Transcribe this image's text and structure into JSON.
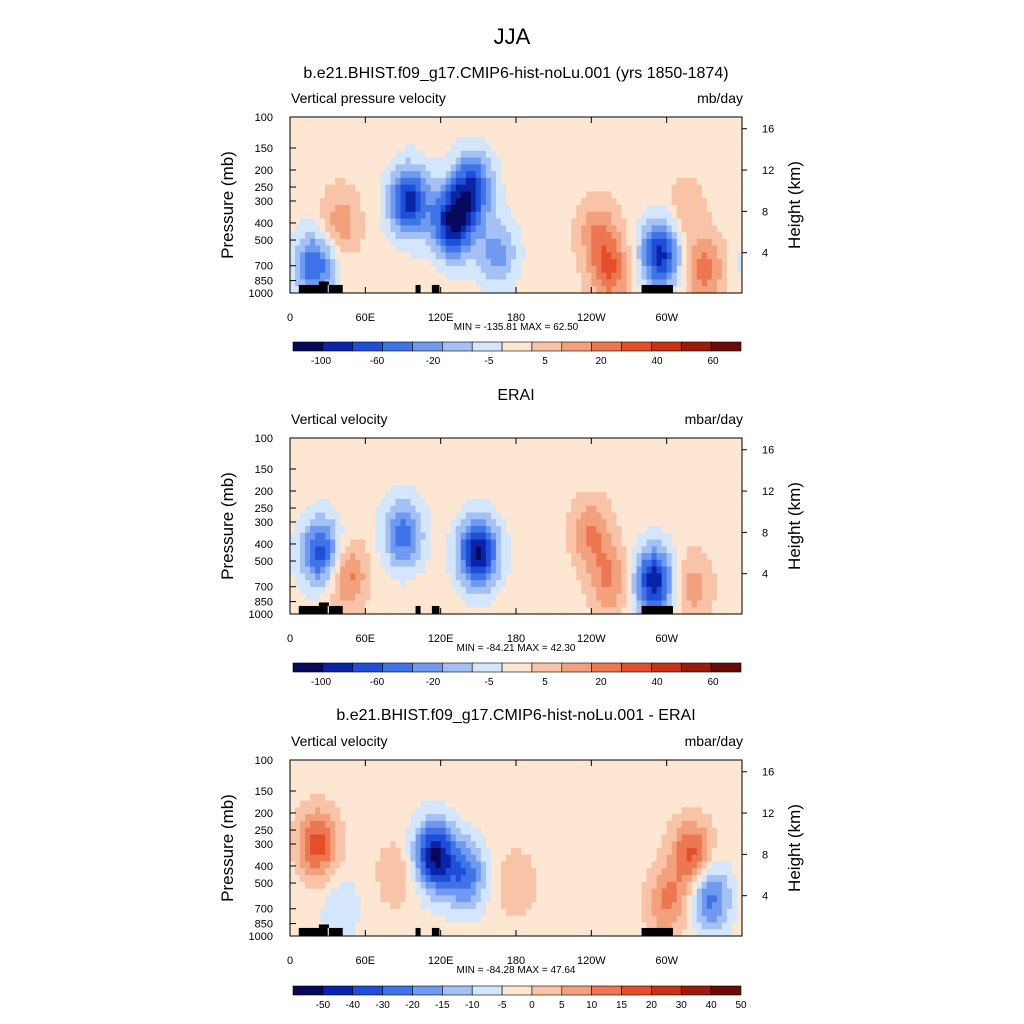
{
  "figure": {
    "title": "JJA"
  },
  "colors": {
    "diverging": [
      "#08085a",
      "#0a24a8",
      "#1f4fd8",
      "#3f74e8",
      "#6f9af0",
      "#a4c1f5",
      "#d4e6fb",
      "#fde6d2",
      "#f8c3a6",
      "#f3a07c",
      "#ec7750",
      "#e24f2a",
      "#c83216",
      "#9a1b0c",
      "#6a0a04"
    ],
    "land": "#000000"
  },
  "chart_data": [
    {
      "type": "heatmap",
      "title": "b.e21.BHIST.f09_g17.CMIP6-hist-noLu.001 (yrs 1850-1874)",
      "variable": "Vertical pressure velocity",
      "units": "mb/day",
      "ylabel": "Pressure (mb)",
      "ylabel_right": "Height (km)",
      "x_ticks": [
        "0",
        "60E",
        "120E",
        "180",
        "120W",
        "60W"
      ],
      "y_ticks": [
        "100",
        "150",
        "200",
        "250",
        "300",
        "400",
        "500",
        "700",
        "850",
        "1000"
      ],
      "y_ticks_right": [
        "16",
        "12",
        "8",
        "4"
      ],
      "stats": "MIN = -135.81  MAX =  62.50",
      "colorbar_labels": [
        "-100",
        "-60",
        "-20",
        "-5",
        "5",
        "20",
        "40",
        "60"
      ],
      "lon_range": [
        0,
        360
      ],
      "pressure_range": [
        100,
        1000
      ],
      "features": [
        {
          "lon": 20,
          "p": 700,
          "value": -60
        },
        {
          "lon": 40,
          "p": 400,
          "value": 30
        },
        {
          "lon": 95,
          "p": 300,
          "value": -80
        },
        {
          "lon": 130,
          "p": 400,
          "value": -90
        },
        {
          "lon": 145,
          "p": 250,
          "value": -70
        },
        {
          "lon": 165,
          "p": 600,
          "value": -40
        },
        {
          "lon": 245,
          "p": 450,
          "value": 30
        },
        {
          "lon": 255,
          "p": 750,
          "value": 45
        },
        {
          "lon": 295,
          "p": 600,
          "value": -80
        },
        {
          "lon": 315,
          "p": 350,
          "value": 20
        },
        {
          "lon": 330,
          "p": 750,
          "value": 40
        }
      ]
    },
    {
      "type": "heatmap",
      "title": "ERAI",
      "variable": "Vertical velocity",
      "units": "mbar/day",
      "ylabel": "Pressure (mb)",
      "ylabel_right": "Height (km)",
      "x_ticks": [
        "0",
        "60E",
        "120E",
        "180",
        "120W",
        "60W"
      ],
      "y_ticks": [
        "100",
        "150",
        "200",
        "250",
        "300",
        "400",
        "500",
        "700",
        "850",
        "1000"
      ],
      "y_ticks_right": [
        "16",
        "12",
        "8",
        "4"
      ],
      "stats": "MIN = -84.21  MAX =  42.30",
      "colorbar_labels": [
        "-100",
        "-60",
        "-20",
        "-5",
        "5",
        "20",
        "40",
        "60"
      ],
      "lon_range": [
        0,
        360
      ],
      "pressure_range": [
        100,
        1000
      ],
      "features": [
        {
          "lon": 25,
          "p": 450,
          "value": -50
        },
        {
          "lon": 45,
          "p": 600,
          "value": 30
        },
        {
          "lon": 90,
          "p": 350,
          "value": -40
        },
        {
          "lon": 150,
          "p": 450,
          "value": -65
        },
        {
          "lon": 240,
          "p": 350,
          "value": 25
        },
        {
          "lon": 255,
          "p": 650,
          "value": 25
        },
        {
          "lon": 290,
          "p": 650,
          "value": -60
        },
        {
          "lon": 320,
          "p": 700,
          "value": 20
        }
      ]
    },
    {
      "type": "heatmap",
      "title": "b.e21.BHIST.f09_g17.CMIP6-hist-noLu.001 - ERAI",
      "variable": "Vertical velocity",
      "units": "mbar/day",
      "ylabel": "Pressure (mb)",
      "ylabel_right": "Height (km)",
      "x_ticks": [
        "0",
        "60E",
        "120E",
        "180",
        "120W",
        "60W"
      ],
      "y_ticks": [
        "100",
        "150",
        "200",
        "250",
        "300",
        "400",
        "500",
        "700",
        "850",
        "1000"
      ],
      "y_ticks_right": [
        "16",
        "12",
        "8",
        "4"
      ],
      "stats": "MIN = -84.28  MAX =  47.64",
      "colorbar_labels": [
        "-50",
        "-40",
        "-30",
        "-20",
        "-15",
        "-10",
        "-5",
        "0",
        "5",
        "10",
        "15",
        "20",
        "30",
        "40",
        "50"
      ],
      "lon_range": [
        0,
        360
      ],
      "pressure_range": [
        100,
        1000
      ],
      "features": [
        {
          "lon": 22,
          "p": 300,
          "value": 30
        },
        {
          "lon": 40,
          "p": 700,
          "value": -10
        },
        {
          "lon": 85,
          "p": 450,
          "value": 10
        },
        {
          "lon": 115,
          "p": 350,
          "value": -50
        },
        {
          "lon": 140,
          "p": 450,
          "value": -30
        },
        {
          "lon": 180,
          "p": 500,
          "value": 10
        },
        {
          "lon": 300,
          "p": 650,
          "value": 20
        },
        {
          "lon": 320,
          "p": 350,
          "value": 30
        },
        {
          "lon": 335,
          "p": 600,
          "value": -30
        }
      ]
    }
  ]
}
